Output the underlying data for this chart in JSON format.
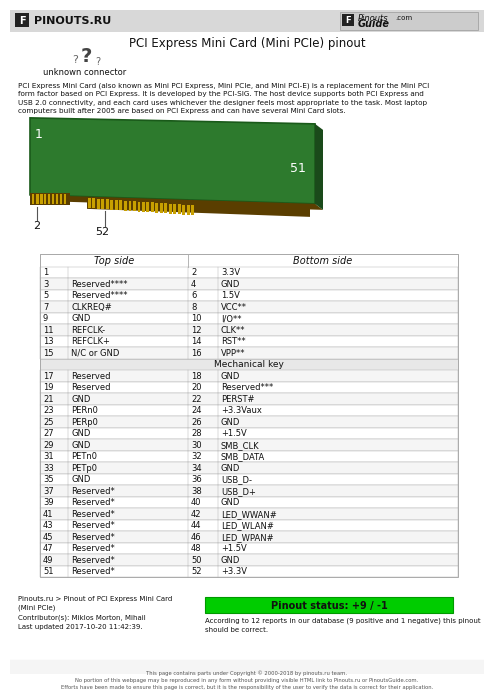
{
  "title": "PCI Express Mini Card (Mini PCIe) pinout",
  "bg_color": "#ffffff",
  "header_bg": "#d8d8d8",
  "logo_left": "PINOUTS.RU",
  "unknown_connector": "unknown connector",
  "table_header_left": "Top side",
  "table_header_right": "Bottom side",
  "mechanical_key_label": "Mechanical key",
  "rows": [
    [
      "1",
      "",
      "2",
      "3.3V"
    ],
    [
      "3",
      "Reserved****",
      "4",
      "GND"
    ],
    [
      "5",
      "Reserved****",
      "6",
      "1.5V"
    ],
    [
      "7",
      "CLKREQ#",
      "8",
      "VCC**"
    ],
    [
      "9",
      "GND",
      "10",
      "I/O**"
    ],
    [
      "11",
      "REFCLK-",
      "12",
      "CLK**"
    ],
    [
      "13",
      "REFCLK+",
      "14",
      "RST**"
    ],
    [
      "15",
      "N/C or GND",
      "16",
      "VPP**"
    ],
    [
      "MECHANICAL_KEY"
    ],
    [
      "17",
      "Reserved",
      "18",
      "GND"
    ],
    [
      "19",
      "Reserved",
      "20",
      "Reserved***"
    ],
    [
      "21",
      "GND",
      "22",
      "PERST#"
    ],
    [
      "23",
      "PERn0",
      "24",
      "+3.3Vaux"
    ],
    [
      "25",
      "PERp0",
      "26",
      "GND"
    ],
    [
      "27",
      "GND",
      "28",
      "+1.5V"
    ],
    [
      "29",
      "GND",
      "30",
      "SMB_CLK"
    ],
    [
      "31",
      "PETn0",
      "32",
      "SMB_DATA"
    ],
    [
      "33",
      "PETp0",
      "34",
      "GND"
    ],
    [
      "35",
      "GND",
      "36",
      "USB_D-"
    ],
    [
      "37",
      "Reserved*",
      "38",
      "USB_D+"
    ],
    [
      "39",
      "Reserved*",
      "40",
      "GND"
    ],
    [
      "41",
      "Reserved*",
      "42",
      "LED_WWAN#"
    ],
    [
      "43",
      "Reserved*",
      "44",
      "LED_WLAN#"
    ],
    [
      "45",
      "Reserved*",
      "46",
      "LED_WPAN#"
    ],
    [
      "47",
      "Reserved*",
      "48",
      "+1.5V"
    ],
    [
      "49",
      "Reserved*",
      "50",
      "GND"
    ],
    [
      "51",
      "Reserved*",
      "52",
      "+3.3V"
    ]
  ],
  "footer_left": "Pinouts.ru > Pinout of PCI Express Mini Card\n(Mini PCIe)\nContributor(s): Miklos Morton, Mihail\nLast updated 2017-10-20 11:42:39.",
  "footer_status": "Pinout status: +9 / -1",
  "footer_note": "According to 12 reports in our database (9 positive and 1 negative) this pinout\nshould be correct.",
  "status_bg": "#00cc00",
  "card_green": "#2d7a2d",
  "card_dark_edge": "#5a3e00",
  "card_gold": "#c8a000",
  "card_shadow": "#3a3000",
  "table_line_color": "#aaaaaa",
  "table_bg_even": "#f5f5f5",
  "mech_key_bg": "#e8e8e8",
  "description": "PCI Express Mini Card (also known as Mini PCI Express, Mini PCIe, and Mini PCI-E) is a replacement for the Mini PCI\nform factor based on PCI Express. It is developed by the PCI-SIG. The host device supports both PCI Express and\nUSB 2.0 connectivity, and each card uses whichever the designer feels most appropriate to the task. Most laptop\ncomputers built after 2005 are based on PCI Express and can have several Mini Card slots.",
  "copyright": "This page contains parts under Copyright © 2000-2018 by pinouts.ru team.\nNo portion of this webpage may be reproduced in any form without providing visible HTML link to Pinouts.ru or PinoutsGuide.com.\nEfforts have been made to ensure this page is correct, but it is the responsibility of the user to verify the data is correct for their application."
}
